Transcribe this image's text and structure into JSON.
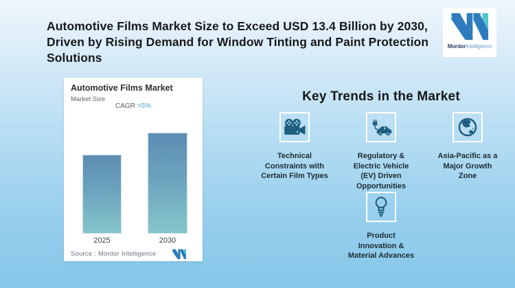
{
  "header": {
    "title_lines": [
      "Automotive Films Market Size to Exceed USD 13.4 Billion by 2030,",
      "Driven by Rising Demand for Window Tinting and Paint Protection",
      "Solutions"
    ]
  },
  "brand": {
    "name_bold": "Mordor",
    "name_light": "Intelligence",
    "logo_blue": "#2e7cbd",
    "logo_teal": "#52c5ce"
  },
  "chart_card": {
    "title": "Automotive Films Market",
    "subtitle": "Market Size",
    "cagr_label": "CAGR ",
    "cagr_value": ">5%",
    "source": "Source :  Mordor Intelligence"
  },
  "chart_data": {
    "type": "bar",
    "title": "Automotive Films Market",
    "subtitle": "Market Size",
    "categories": [
      "2025",
      "2030"
    ],
    "values": [
      10.5,
      13.4
    ],
    "values_estimated": true,
    "unit": "USD billion",
    "annotation": "CAGR >5%",
    "source": "Source :  Mordor Intelligence",
    "grid": false,
    "y_axis_shown": false,
    "bar_gradient_top": "#5d8db3",
    "bar_gradient_bottom": "#85c6cb"
  },
  "trends": {
    "heading": "Key Trends in the Market",
    "icon_color": "#1e5e7f",
    "items": [
      {
        "icon": "movie-camera-icon",
        "label": "Technical\nConstraints with\nCertain Film Types"
      },
      {
        "icon": "ev-car-icon",
        "label": "Regulatory &\nElectric Vehicle\n(EV) Driven\nOpportunities"
      },
      {
        "icon": "globe-icon",
        "label": "Asia-Pacific as a\nMajor Growth\nZone"
      },
      {
        "icon": "lightbulb-icon",
        "label": "Product\nInnovation &\nMaterial Advances"
      }
    ]
  }
}
